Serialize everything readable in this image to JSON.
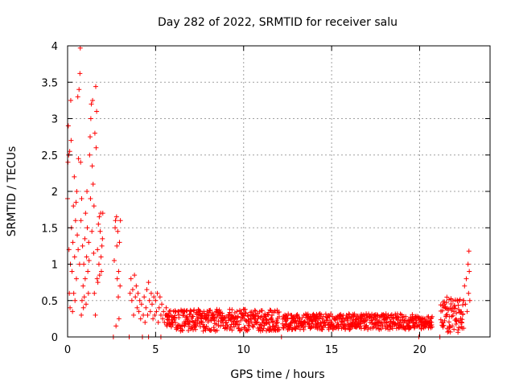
{
  "chart_data": {
    "type": "scatter",
    "title": "Day 282 of 2022, SRMTID for receiver salu",
    "xlabel": "GPS time / hours",
    "ylabel": "SRMTID / TECUs",
    "xlim": [
      0,
      24
    ],
    "ylim": [
      0,
      4
    ],
    "xticks": [
      "0",
      "5",
      "10",
      "15",
      "20"
    ],
    "xtick_values": [
      0,
      5,
      10,
      15,
      20
    ],
    "yticks": [
      "0",
      "0.5",
      "1",
      "1.5",
      "2",
      "2.5",
      "3",
      "3.5",
      "4"
    ],
    "ytick_values": [
      0,
      0.5,
      1,
      1.5,
      2,
      2.5,
      3,
      3.5,
      4
    ],
    "grid": true,
    "marker": "+",
    "color": "#ff0000",
    "series": [
      {
        "name": "salu",
        "points": [
          [
            0.0,
            1.9
          ],
          [
            0.02,
            2.4
          ],
          [
            0.04,
            2.9
          ],
          [
            0.06,
            2.5
          ],
          [
            0.08,
            1.2
          ],
          [
            0.1,
            0.6
          ],
          [
            0.12,
            2.55
          ],
          [
            0.14,
            0.4
          ],
          [
            0.16,
            1.0
          ],
          [
            0.18,
            3.25
          ],
          [
            0.2,
            2.7
          ],
          [
            0.22,
            1.5
          ],
          [
            0.25,
            0.9
          ],
          [
            0.28,
            0.35
          ],
          [
            0.3,
            1.3
          ],
          [
            0.33,
            1.8
          ],
          [
            0.35,
            0.6
          ],
          [
            0.38,
            2.2
          ],
          [
            0.4,
            1.1
          ],
          [
            0.42,
            0.5
          ],
          [
            0.45,
            1.6
          ],
          [
            0.48,
            1.85
          ],
          [
            0.5,
            0.8
          ],
          [
            0.52,
            2.0
          ],
          [
            0.55,
            1.4
          ],
          [
            0.58,
            3.3
          ],
          [
            0.6,
            1.2
          ],
          [
            0.62,
            2.45
          ],
          [
            0.65,
            3.4
          ],
          [
            0.68,
            1.0
          ],
          [
            0.7,
            3.62
          ],
          [
            0.72,
            3.97
          ],
          [
            0.74,
            2.4
          ],
          [
            0.76,
            1.6
          ],
          [
            0.78,
            0.3
          ],
          [
            0.8,
            1.9
          ],
          [
            0.82,
            0.5
          ],
          [
            0.85,
            1.25
          ],
          [
            0.88,
            0.7
          ],
          [
            0.9,
            0.4
          ],
          [
            0.92,
            1.0
          ],
          [
            0.95,
            0.55
          ],
          [
            0.98,
            1.35
          ],
          [
            1.0,
            0.8
          ],
          [
            1.02,
            1.7
          ],
          [
            1.05,
            0.45
          ],
          [
            1.08,
            1.1
          ],
          [
            1.1,
            2.0
          ],
          [
            1.12,
            1.5
          ],
          [
            1.15,
            0.9
          ],
          [
            1.18,
            0.6
          ],
          [
            1.2,
            1.3
          ],
          [
            1.22,
            1.05
          ],
          [
            1.25,
            2.5
          ],
          [
            1.28,
            2.75
          ],
          [
            1.3,
            1.9
          ],
          [
            1.32,
            3.0
          ],
          [
            1.35,
            3.2
          ],
          [
            1.38,
            1.45
          ],
          [
            1.4,
            2.35
          ],
          [
            1.42,
            3.25
          ],
          [
            1.45,
            2.1
          ],
          [
            1.48,
            1.15
          ],
          [
            1.5,
            1.8
          ],
          [
            1.52,
            0.6
          ],
          [
            1.55,
            2.8
          ],
          [
            1.58,
            0.3
          ],
          [
            1.6,
            3.44
          ],
          [
            1.62,
            2.6
          ],
          [
            1.65,
            3.1
          ],
          [
            1.68,
            0.8
          ],
          [
            1.7,
            1.2
          ],
          [
            1.72,
            0.75
          ],
          [
            1.75,
            1.55
          ],
          [
            1.78,
            1.0
          ],
          [
            1.8,
            1.65
          ],
          [
            1.82,
            0.85
          ],
          [
            1.85,
            1.45
          ],
          [
            1.88,
            1.7
          ],
          [
            1.9,
            1.1
          ],
          [
            1.92,
            0.9
          ],
          [
            1.95,
            1.25
          ],
          [
            1.98,
            1.35
          ],
          [
            2.0,
            1.7
          ],
          [
            2.65,
            1.05
          ],
          [
            2.7,
            1.5
          ],
          [
            2.72,
            1.6
          ],
          [
            2.75,
            0.15
          ],
          [
            2.78,
            1.65
          ],
          [
            2.8,
            1.25
          ],
          [
            2.82,
            0.8
          ],
          [
            2.85,
            1.45
          ],
          [
            2.88,
            0.55
          ],
          [
            2.9,
            0.9
          ],
          [
            2.92,
            0.25
          ],
          [
            2.95,
            1.3
          ],
          [
            2.98,
            0.7
          ],
          [
            3.0,
            1.6
          ],
          [
            3.5,
            0.0
          ],
          [
            3.55,
            0.6
          ],
          [
            3.6,
            0.8
          ],
          [
            3.65,
            0.5
          ],
          [
            3.7,
            0.65
          ],
          [
            3.75,
            0.3
          ],
          [
            3.8,
            0.85
          ],
          [
            3.85,
            0.55
          ],
          [
            3.9,
            0.7
          ],
          [
            3.95,
            0.4
          ],
          [
            4.0,
            0.6
          ],
          [
            4.05,
            0.35
          ],
          [
            4.1,
            0.5
          ],
          [
            4.15,
            0.25
          ],
          [
            4.2,
            0.45
          ],
          [
            4.25,
            0.0
          ],
          [
            4.3,
            0.3
          ],
          [
            4.35,
            0.55
          ],
          [
            4.4,
            0.2
          ],
          [
            4.45,
            0.4
          ],
          [
            4.5,
            0.65
          ],
          [
            4.55,
            0.3
          ],
          [
            4.6,
            0.75
          ],
          [
            4.65,
            0.5
          ],
          [
            4.7,
            0.35
          ],
          [
            4.75,
            0.6
          ],
          [
            4.8,
            0.45
          ],
          [
            4.85,
            0.25
          ],
          [
            4.9,
            0.55
          ],
          [
            4.95,
            0.3
          ],
          [
            5.0,
            0.5
          ],
          [
            5.05,
            0.35
          ],
          [
            5.1,
            0.6
          ],
          [
            5.15,
            0.2
          ],
          [
            5.2,
            0.4
          ],
          [
            5.25,
            0.55
          ],
          [
            5.3,
            0.3
          ],
          [
            5.35,
            0.45
          ],
          [
            5.4,
            0.25
          ],
          [
            5.45,
            0.35
          ],
          [
            5.5,
            0.2
          ],
          [
            5.55,
            0.3
          ],
          [
            5.6,
            0.4
          ],
          [
            5.65,
            0.15
          ],
          [
            2.6,
            0.0
          ],
          [
            4.6,
            0.0
          ],
          [
            5.3,
            0.0
          ],
          [
            12.15,
            0.0
          ],
          [
            19.95,
            0.0
          ],
          [
            21.15,
            0.0
          ],
          [
            22.5,
            0.5
          ],
          [
            22.55,
            0.7
          ],
          [
            22.6,
            0.45
          ],
          [
            22.65,
            0.8
          ],
          [
            22.7,
            0.35
          ],
          [
            22.75,
            1.0
          ],
          [
            22.78,
            0.6
          ],
          [
            22.8,
            1.18
          ],
          [
            22.82,
            0.9
          ],
          [
            22.85,
            0.5
          ]
        ]
      }
    ]
  }
}
